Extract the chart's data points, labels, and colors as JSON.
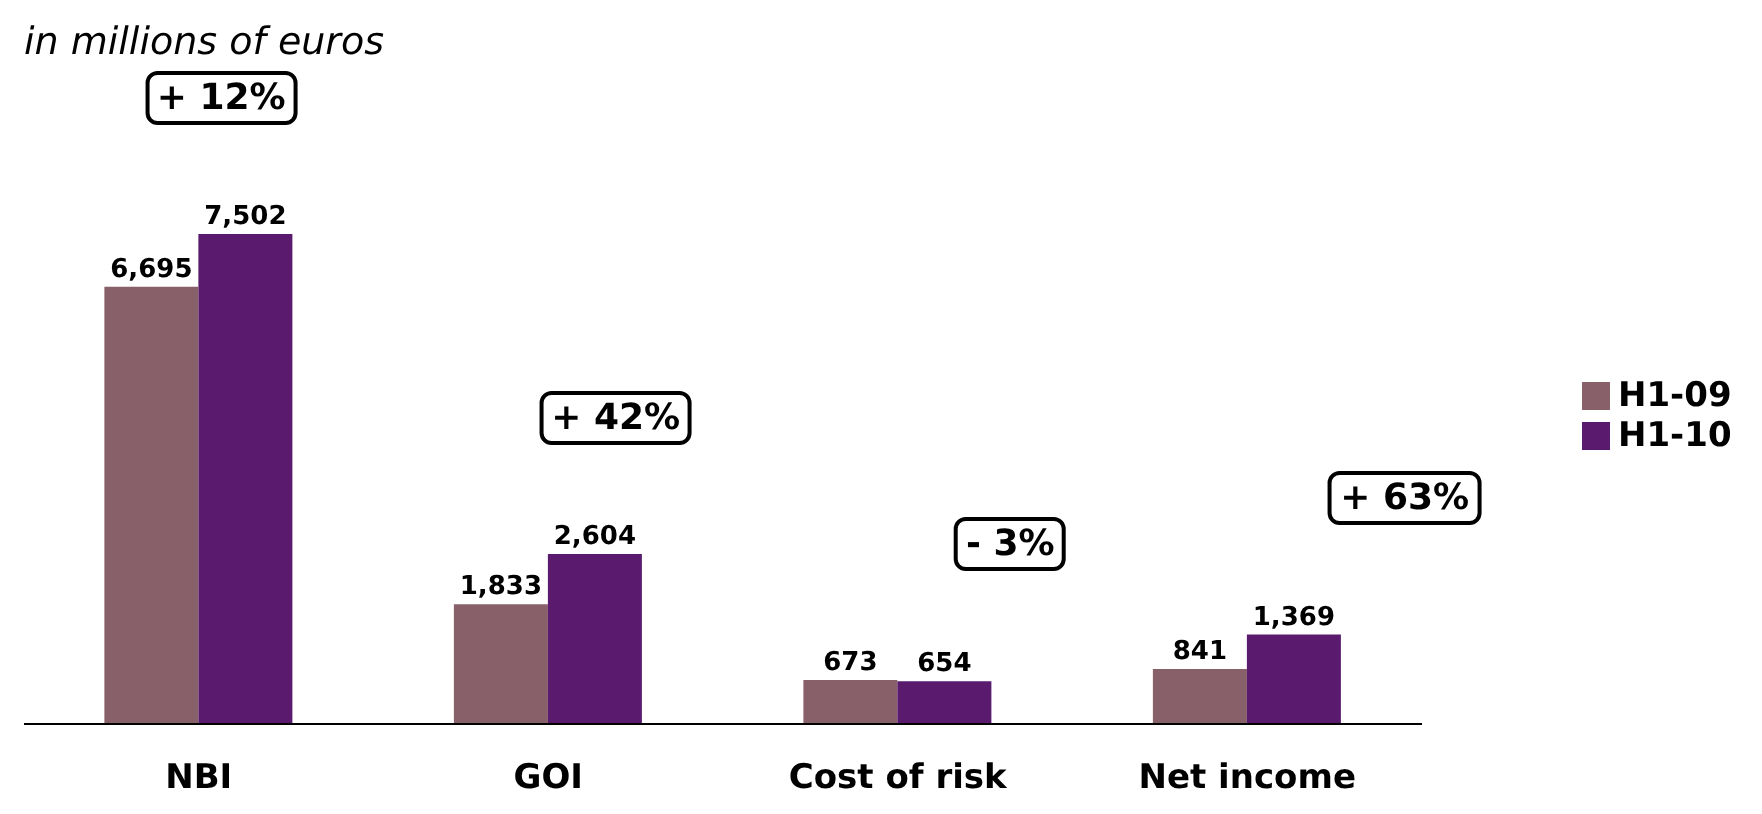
{
  "chart_data": {
    "type": "bar",
    "subtitle": "in millions of euros",
    "categories": [
      "NBI",
      "GOI",
      "Cost of risk",
      "Net income"
    ],
    "series": [
      {
        "name": "H1-09",
        "color": "#87606a",
        "values": [
          6695,
          1833,
          673,
          841
        ],
        "value_labels": [
          "6,695",
          "1,833",
          "673",
          "841"
        ]
      },
      {
        "name": "H1-10",
        "color": "#5a1a6e",
        "values": [
          7502,
          2604,
          654,
          1369
        ],
        "value_labels": [
          "7,502",
          "2,604",
          "654",
          "1,369"
        ]
      }
    ],
    "legend": "right",
    "grid": false,
    "annotations": [
      "+ 12%",
      "+ 42%",
      "- 3%",
      "+ 63%"
    ]
  }
}
